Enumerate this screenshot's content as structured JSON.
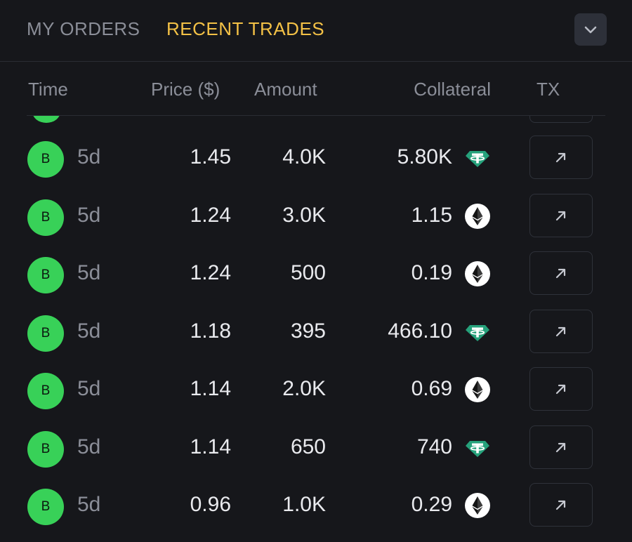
{
  "tabs": {
    "my_orders": "MY ORDERS",
    "recent_trades": "RECENT TRADES"
  },
  "colors": {
    "active_tab": "#f3c146",
    "buy_badge": "#38d158",
    "tether": "#26a17b"
  },
  "columns": {
    "time": "Time",
    "price": "Price ($)",
    "amount": "Amount",
    "collateral": "Collateral",
    "tx": "TX"
  },
  "trades": [
    {
      "side": "B",
      "time": "5d",
      "price": "1.45",
      "amount": "4.0K",
      "collateral": "5.80K",
      "token": "tether-icon"
    },
    {
      "side": "B",
      "time": "5d",
      "price": "1.24",
      "amount": "3.0K",
      "collateral": "1.15",
      "token": "ethereum-icon"
    },
    {
      "side": "B",
      "time": "5d",
      "price": "1.24",
      "amount": "500",
      "collateral": "0.19",
      "token": "ethereum-icon"
    },
    {
      "side": "B",
      "time": "5d",
      "price": "1.18",
      "amount": "395",
      "collateral": "466.10",
      "token": "tether-icon"
    },
    {
      "side": "B",
      "time": "5d",
      "price": "1.14",
      "amount": "2.0K",
      "collateral": "0.69",
      "token": "ethereum-icon"
    },
    {
      "side": "B",
      "time": "5d",
      "price": "1.14",
      "amount": "650",
      "collateral": "740",
      "token": "tether-icon"
    },
    {
      "side": "B",
      "time": "5d",
      "price": "0.96",
      "amount": "1.0K",
      "collateral": "0.29",
      "token": "ethereum-icon"
    }
  ]
}
